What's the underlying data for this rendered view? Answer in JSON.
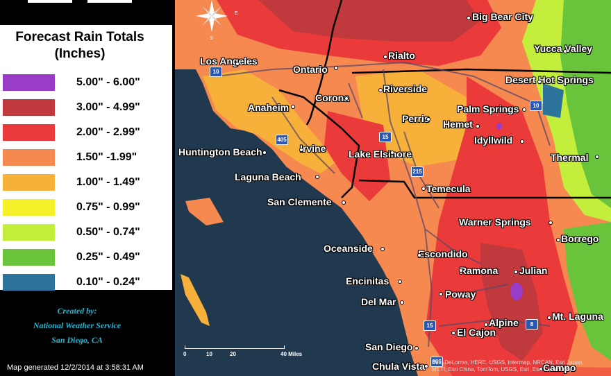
{
  "legend": {
    "title": "Forecast Rain Totals\n(Inches)",
    "title_line1": "Forecast Rain Totals",
    "title_line2": "(Inches)",
    "items": [
      {
        "label": "5.00\" - 6.00\"",
        "color": "#9a3cc8"
      },
      {
        "label": "3.00\" - 4.99\"",
        "color": "#c0393c"
      },
      {
        "label": "2.00\" - 2.99\"",
        "color": "#ea3a3a"
      },
      {
        "label": "1.50\" -1.99\"",
        "color": "#f6894f"
      },
      {
        "label": "1.00\" - 1.49\"",
        "color": "#f7b13b"
      },
      {
        "label": "0.75\" - 0.99\"",
        "color": "#f6f02b"
      },
      {
        "label": "0.50\" - 0.74\"",
        "color": "#c3ee3c"
      },
      {
        "label": "0.25\" - 0.49\"",
        "color": "#6ac43b"
      },
      {
        "label": "0.10\" - 0.24\"",
        "color": "#2d749c"
      }
    ]
  },
  "credit": {
    "line1": "Created by:",
    "line2": "National Weather Service",
    "line3": "San Diego, CA"
  },
  "generated": "Map generated 12/2/2014 at 3:58:31 AM",
  "cities": [
    {
      "name": "Big Bear City"
    },
    {
      "name": "Yucca Valley"
    },
    {
      "name": "Los Angeles"
    },
    {
      "name": "Rialto"
    },
    {
      "name": "Ontario"
    },
    {
      "name": "Desert Hot Springs"
    },
    {
      "name": "Riverside"
    },
    {
      "name": "Corona"
    },
    {
      "name": "Anaheim"
    },
    {
      "name": "Palm Springs"
    },
    {
      "name": "Perris"
    },
    {
      "name": "Hemet"
    },
    {
      "name": "Idyllwild"
    },
    {
      "name": "Huntington Beach"
    },
    {
      "name": "Irvine"
    },
    {
      "name": "Lake Elsinore"
    },
    {
      "name": "Thermal"
    },
    {
      "name": "Laguna Beach"
    },
    {
      "name": "Temecula"
    },
    {
      "name": "San Clemente"
    },
    {
      "name": "Warner Springs"
    },
    {
      "name": "Borrego"
    },
    {
      "name": "Oceanside"
    },
    {
      "name": "Escondido"
    },
    {
      "name": "Ramona"
    },
    {
      "name": "Julian"
    },
    {
      "name": "Encinitas"
    },
    {
      "name": "Poway"
    },
    {
      "name": "Del Mar"
    },
    {
      "name": "Mt. Laguna"
    },
    {
      "name": "Alpine"
    },
    {
      "name": "El Cajon"
    },
    {
      "name": "San Diego"
    },
    {
      "name": "Chula Vista"
    },
    {
      "name": "Campo"
    }
  ],
  "highways": [
    "10",
    "405",
    "15",
    "215",
    "10",
    "15",
    "8",
    "805"
  ],
  "scale": {
    "ticks": [
      "0",
      "10",
      "20",
      "40 Miles"
    ]
  },
  "compass": {
    "labels": [
      "E",
      "S"
    ]
  },
  "attribution": "Esri, DeLorme, HERE, USGS, Intermap, NRCAN, Esri Japan, METI, Esri China, TomTom, USGS, Esri, Esri Community"
}
